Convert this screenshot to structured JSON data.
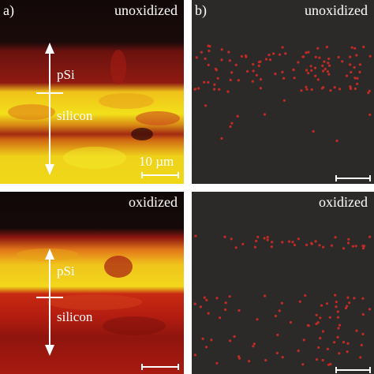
{
  "panels": {
    "a_top": {
      "letter": "a)",
      "state": "unoxidized",
      "layer_top": "pSi",
      "layer_bottom": "silicon",
      "scale": "10 µm"
    },
    "b_top": {
      "letter": "b)",
      "state": "unoxidized"
    },
    "a_bottom": {
      "state": "oxidized",
      "layer_top": "pSi",
      "layer_bottom": "silicon"
    },
    "b_bottom": {
      "state": "oxidized"
    }
  },
  "colors": {
    "map_dark": "#1a0a0a",
    "map_red": "#8a1510",
    "map_orange": "#e05a10",
    "map_yellow": "#f2e01a",
    "dot_red": "#c42a24",
    "panel_b_bg": "#2b2a29",
    "separator": "#ffffff"
  }
}
